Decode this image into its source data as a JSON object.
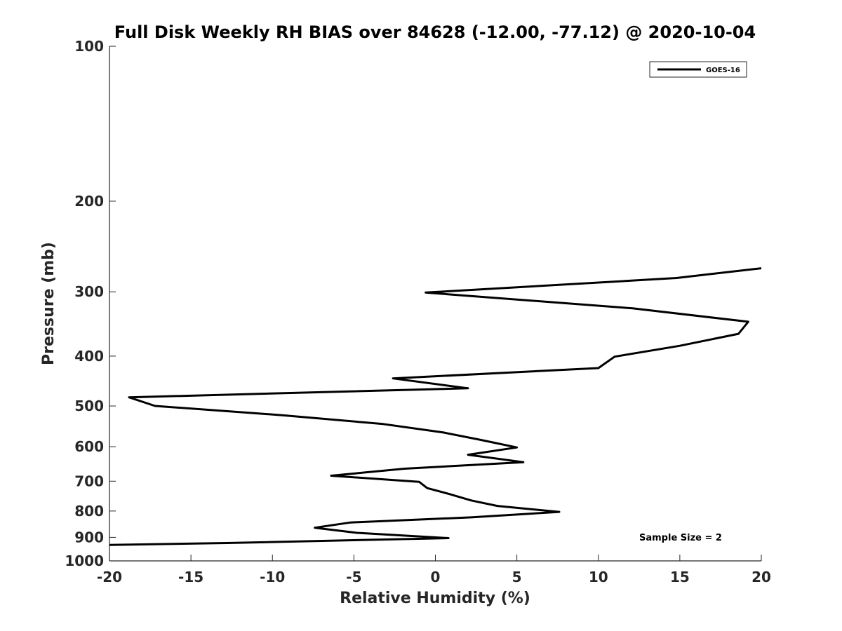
{
  "chart_data": {
    "type": "line",
    "title": "Full Disk Weekly RH BIAS over 84628 (-12.00, -77.12) @ 2020-10-04",
    "xlabel": "Relative Humidity (%)",
    "ylabel": "Pressure (mb)",
    "xlim": [
      -20,
      20
    ],
    "ylim": [
      100,
      1000
    ],
    "y_scale": "log",
    "y_direction": "reversed",
    "x_ticks": [
      "-20",
      "-15",
      "-10",
      "-5",
      "0",
      "5",
      "10",
      "15",
      "20"
    ],
    "y_ticks": [
      "100",
      "200",
      "300",
      "400",
      "500",
      "600",
      "700",
      "800",
      "900",
      "1000"
    ],
    "legend_position": "top-right",
    "grid": false,
    "annotation": "Sample Size = 2",
    "series": [
      {
        "name": "GOES-16",
        "color": "#000000",
        "points": [
          {
            "x": 20.0,
            "y": 270
          },
          {
            "x": 14.8,
            "y": 282
          },
          {
            "x": -0.6,
            "y": 301
          },
          {
            "x": 12.1,
            "y": 323
          },
          {
            "x": 19.2,
            "y": 343
          },
          {
            "x": 18.6,
            "y": 362
          },
          {
            "x": 15.0,
            "y": 382
          },
          {
            "x": 11.0,
            "y": 401
          },
          {
            "x": 10.0,
            "y": 422
          },
          {
            "x": -2.6,
            "y": 442
          },
          {
            "x": 2.0,
            "y": 462
          },
          {
            "x": -18.8,
            "y": 481
          },
          {
            "x": -17.2,
            "y": 500
          },
          {
            "x": -9.4,
            "y": 521
          },
          {
            "x": -3.2,
            "y": 542
          },
          {
            "x": 0.5,
            "y": 563
          },
          {
            "x": 2.8,
            "y": 582
          },
          {
            "x": 5.0,
            "y": 602
          },
          {
            "x": 2.0,
            "y": 622
          },
          {
            "x": 5.4,
            "y": 643
          },
          {
            "x": -1.9,
            "y": 662
          },
          {
            "x": -6.4,
            "y": 683
          },
          {
            "x": -1.0,
            "y": 702
          },
          {
            "x": -0.5,
            "y": 722
          },
          {
            "x": 0.9,
            "y": 742
          },
          {
            "x": 2.2,
            "y": 763
          },
          {
            "x": 3.8,
            "y": 782
          },
          {
            "x": 7.6,
            "y": 803
          },
          {
            "x": 2.2,
            "y": 823
          },
          {
            "x": -5.2,
            "y": 842
          },
          {
            "x": -7.4,
            "y": 862
          },
          {
            "x": -4.8,
            "y": 882
          },
          {
            "x": 0.8,
            "y": 903
          },
          {
            "x": -12.8,
            "y": 923
          },
          {
            "x": -20.0,
            "y": 931
          }
        ]
      }
    ]
  }
}
